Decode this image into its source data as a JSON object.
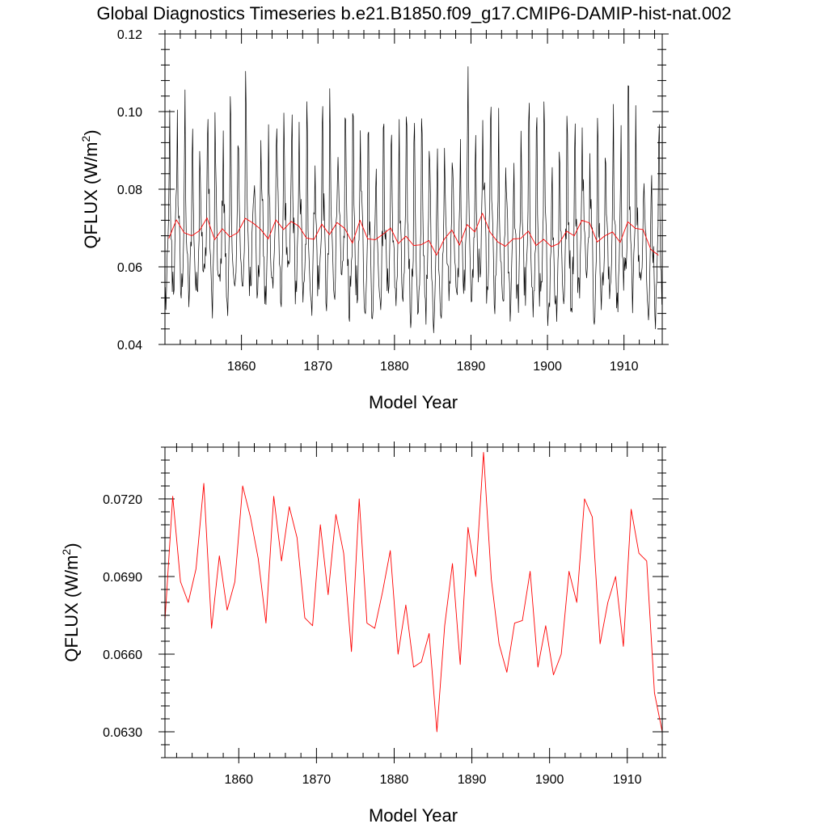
{
  "title": "Global Diagnostics Timeseries b.e21.B1850.f09_g17.CMIP6-DAMIP-hist-nat.002",
  "colors": {
    "monthly": "#000000",
    "annual": "#ff0000",
    "frame": "#000000"
  },
  "chart_data": [
    {
      "type": "line",
      "ylabel_main": "QFLUX (W/m",
      "ylabel_sup": "2",
      "ylabel_close": ")",
      "xlabel": "Model Year",
      "xlim": [
        1850,
        1915
      ],
      "ylim": [
        0.04,
        0.12
      ],
      "xticks": [
        1860,
        1870,
        1880,
        1890,
        1900,
        1910
      ],
      "xtick_labels": [
        "1860",
        "1870",
        "1880",
        "1890",
        "1900",
        "1910"
      ],
      "yticks": [
        0.04,
        0.06,
        0.08,
        0.1,
        0.12
      ],
      "ytick_labels": [
        "0.04",
        "0.06",
        "0.08",
        "0.10",
        "0.12"
      ],
      "x_minor_step": 2,
      "y_minor_step": 0.004,
      "series": [
        {
          "kind": "monthly",
          "color": "#000000",
          "x_start": 1850.04,
          "x_step": 0.08333,
          "y_range": [
            0.043,
            0.117
          ],
          "y_mean": 0.068
        },
        {
          "kind": "annual",
          "color": "#ff0000",
          "x": [
            1850.5,
            1851.5,
            1852.5,
            1853.5,
            1854.5,
            1855.5,
            1856.5,
            1857.5,
            1858.5,
            1859.5,
            1860.5,
            1861.5,
            1862.5,
            1863.5,
            1864.5,
            1865.5,
            1866.5,
            1867.5,
            1868.5,
            1869.5,
            1870.5,
            1871.5,
            1872.5,
            1873.5,
            1874.5,
            1875.5,
            1876.5,
            1877.5,
            1878.5,
            1879.5,
            1880.5,
            1881.5,
            1882.5,
            1883.5,
            1884.5,
            1885.5,
            1886.5,
            1887.5,
            1888.5,
            1889.5,
            1890.5,
            1891.5,
            1892.5,
            1893.5,
            1894.5,
            1895.5,
            1896.5,
            1897.5,
            1898.5,
            1899.5,
            1900.5,
            1901.5,
            1902.5,
            1903.5,
            1904.5,
            1905.5,
            1906.5,
            1907.5,
            1908.5,
            1909.5,
            1910.5,
            1911.5,
            1912.5,
            1913.5,
            1914.5
          ],
          "y": [
            0.0673,
            0.0721,
            0.0688,
            0.068,
            0.0693,
            0.0726,
            0.067,
            0.0698,
            0.0677,
            0.0688,
            0.0725,
            0.0713,
            0.0697,
            0.0672,
            0.0721,
            0.0696,
            0.0717,
            0.0705,
            0.0674,
            0.0671,
            0.071,
            0.0683,
            0.0714,
            0.0699,
            0.0661,
            0.072,
            0.0672,
            0.067,
            0.0684,
            0.07,
            0.066,
            0.0679,
            0.0655,
            0.0657,
            0.0668,
            0.063,
            0.0671,
            0.0695,
            0.0656,
            0.0709,
            0.069,
            0.0738,
            0.0689,
            0.0664,
            0.0653,
            0.0672,
            0.0673,
            0.0692,
            0.0655,
            0.0671,
            0.0652,
            0.066,
            0.0692,
            0.068,
            0.072,
            0.0713,
            0.0664,
            0.068,
            0.069,
            0.0663,
            0.0716,
            0.0699,
            0.0696,
            0.0645,
            0.063
          ]
        }
      ]
    },
    {
      "type": "line",
      "ylabel_main": "QFLUX (W/m",
      "ylabel_sup": "2",
      "ylabel_close": ")",
      "xlabel": "Model Year",
      "xlim": [
        1850.5,
        1914.5
      ],
      "ylim": [
        0.062,
        0.074
      ],
      "xticks": [
        1860,
        1870,
        1880,
        1890,
        1900,
        1910
      ],
      "xtick_labels": [
        "1860",
        "1870",
        "1880",
        "1890",
        "1900",
        "1910"
      ],
      "yticks": [
        0.063,
        0.066,
        0.069,
        0.072
      ],
      "ytick_labels": [
        "0.0630",
        "0.0660",
        "0.0690",
        "0.0720"
      ],
      "x_minor_step": 2,
      "y_minor_step": 0.0005,
      "series": [
        {
          "kind": "annual",
          "color": "#ff0000",
          "x": [
            1850.5,
            1851.5,
            1852.5,
            1853.5,
            1854.5,
            1855.5,
            1856.5,
            1857.5,
            1858.5,
            1859.5,
            1860.5,
            1861.5,
            1862.5,
            1863.5,
            1864.5,
            1865.5,
            1866.5,
            1867.5,
            1868.5,
            1869.5,
            1870.5,
            1871.5,
            1872.5,
            1873.5,
            1874.5,
            1875.5,
            1876.5,
            1877.5,
            1878.5,
            1879.5,
            1880.5,
            1881.5,
            1882.5,
            1883.5,
            1884.5,
            1885.5,
            1886.5,
            1887.5,
            1888.5,
            1889.5,
            1890.5,
            1891.5,
            1892.5,
            1893.5,
            1894.5,
            1895.5,
            1896.5,
            1897.5,
            1898.5,
            1899.5,
            1900.5,
            1901.5,
            1902.5,
            1903.5,
            1904.5,
            1905.5,
            1906.5,
            1907.5,
            1908.5,
            1909.5,
            1910.5,
            1911.5,
            1912.5,
            1913.5,
            1914.5
          ],
          "y": [
            0.0673,
            0.0721,
            0.0688,
            0.068,
            0.0693,
            0.0726,
            0.067,
            0.0698,
            0.0677,
            0.0688,
            0.0725,
            0.0713,
            0.0697,
            0.0672,
            0.0721,
            0.0696,
            0.0717,
            0.0705,
            0.0674,
            0.0671,
            0.071,
            0.0683,
            0.0714,
            0.0699,
            0.0661,
            0.072,
            0.0672,
            0.067,
            0.0684,
            0.07,
            0.066,
            0.0679,
            0.0655,
            0.0657,
            0.0668,
            0.063,
            0.0671,
            0.0695,
            0.0656,
            0.0709,
            0.069,
            0.0738,
            0.0689,
            0.0664,
            0.0653,
            0.0672,
            0.0673,
            0.0692,
            0.0655,
            0.0671,
            0.0652,
            0.066,
            0.0692,
            0.068,
            0.072,
            0.0713,
            0.0664,
            0.068,
            0.069,
            0.0663,
            0.0716,
            0.0699,
            0.0696,
            0.0645,
            0.063
          ]
        }
      ]
    }
  ]
}
